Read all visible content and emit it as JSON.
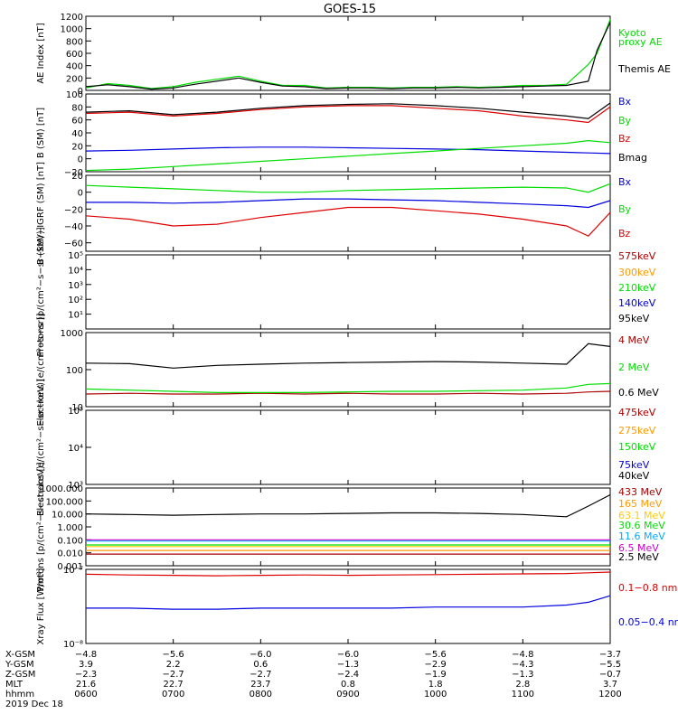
{
  "figure": {
    "title": "GOES-15"
  },
  "colors": {
    "black": "#000000",
    "red": "#dd0000",
    "green": "#00dd00",
    "blue": "#0000dd",
    "orange": "#ff9900",
    "gold": "#ffcc00",
    "cyan": "#00aaff",
    "magenta": "#cc00cc",
    "darkred": "#aa0000"
  },
  "chart_data": [
    {
      "type": "line",
      "ylabel": "AE Index [nT]",
      "ylim": [
        0,
        1200
      ],
      "yticks": [
        "0",
        "200",
        "400",
        "600",
        "800",
        "1000",
        "1200"
      ],
      "legend": [
        {
          "label": "Kyoto",
          "color": "green"
        },
        {
          "label": "proxy AE",
          "color": "green"
        },
        {
          "label": "Themis AE",
          "color": "black"
        }
      ],
      "x": [
        0,
        0.25,
        0.5,
        0.75,
        1,
        1.25,
        1.5,
        1.75,
        2,
        2.25,
        2.5,
        2.75,
        3,
        3.25,
        3.5,
        3.75,
        4,
        4.25,
        4.5,
        4.75,
        5,
        5.25,
        5.5,
        5.75,
        5.85,
        6
      ],
      "series": [
        {
          "name": "Kyoto proxy AE",
          "color": "green",
          "values": [
            40,
            110,
            80,
            30,
            60,
            130,
            180,
            230,
            150,
            80,
            80,
            40,
            50,
            50,
            40,
            50,
            50,
            60,
            50,
            60,
            80,
            80,
            100,
            420,
            600,
            1150
          ]
        },
        {
          "name": "Themis AE",
          "color": "black",
          "values": [
            60,
            90,
            60,
            20,
            40,
            100,
            150,
            200,
            130,
            70,
            60,
            30,
            40,
            40,
            30,
            40,
            40,
            50,
            40,
            50,
            60,
            70,
            80,
            150,
            650,
            1100
          ]
        }
      ]
    },
    {
      "type": "line",
      "ylabel": "B (SM) [nT]",
      "ylim": [
        -20,
        100
      ],
      "yticks": [
        "−20",
        "0",
        "20",
        "40",
        "60",
        "80",
        "100"
      ],
      "legend": [
        {
          "label": "Bx",
          "color": "blue"
        },
        {
          "label": "By",
          "color": "green"
        },
        {
          "label": "Bz",
          "color": "red"
        },
        {
          "label": "Bmag",
          "color": "black"
        }
      ],
      "x": [
        0,
        0.5,
        1,
        1.5,
        2,
        2.5,
        3,
        3.5,
        4,
        4.5,
        5,
        5.5,
        5.75,
        6
      ],
      "series": [
        {
          "name": "Bx",
          "color": "blue",
          "values": [
            12,
            13,
            15,
            17,
            18,
            18,
            17,
            16,
            15,
            14,
            12,
            10,
            9,
            8
          ]
        },
        {
          "name": "By",
          "color": "green",
          "values": [
            -18,
            -16,
            -12,
            -8,
            -4,
            0,
            4,
            8,
            12,
            16,
            20,
            24,
            28,
            25
          ]
        },
        {
          "name": "Bz",
          "color": "red",
          "values": [
            70,
            72,
            66,
            70,
            76,
            80,
            82,
            82,
            78,
            74,
            66,
            60,
            56,
            80
          ]
        },
        {
          "name": "Bmag",
          "color": "black",
          "values": [
            72,
            74,
            68,
            72,
            78,
            82,
            84,
            85,
            82,
            78,
            72,
            66,
            62,
            86
          ]
        }
      ]
    },
    {
      "type": "line",
      "ylabel": "B (SM)−IGRF (SM) [nT]",
      "ylim": [
        -70,
        20
      ],
      "yticks": [
        "−60",
        "−40",
        "−20",
        "0",
        "20"
      ],
      "legend": [
        {
          "label": "Bx",
          "color": "blue"
        },
        {
          "label": "By",
          "color": "green"
        },
        {
          "label": "Bz",
          "color": "red"
        }
      ],
      "x": [
        0,
        0.5,
        1,
        1.5,
        2,
        2.5,
        3,
        3.5,
        4,
        4.5,
        5,
        5.5,
        5.75,
        6
      ],
      "series": [
        {
          "name": "Bx",
          "color": "blue",
          "values": [
            -12,
            -12,
            -13,
            -12,
            -10,
            -8,
            -8,
            -9,
            -10,
            -12,
            -14,
            -16,
            -18,
            -10
          ]
        },
        {
          "name": "By",
          "color": "green",
          "values": [
            8,
            6,
            4,
            2,
            0,
            0,
            2,
            3,
            4,
            5,
            6,
            5,
            0,
            10
          ]
        },
        {
          "name": "Bz",
          "color": "red",
          "values": [
            -28,
            -32,
            -40,
            -38,
            -30,
            -24,
            -18,
            -18,
            -22,
            -26,
            -32,
            -40,
            -52,
            -24
          ]
        }
      ]
    },
    {
      "type": "line",
      "ylabel": "Protons [p/(cm²−s−sr−keV)]",
      "yscale": "log",
      "ylim": [
        1,
        100000
      ],
      "yticks": [
        "10¹",
        "10²",
        "10³",
        "10⁴",
        "10⁵"
      ],
      "legend": [
        {
          "label": "575keV",
          "color": "darkred"
        },
        {
          "label": "300keV",
          "color": "orange"
        },
        {
          "label": "210keV",
          "color": "green"
        },
        {
          "label": "140keV",
          "color": "blue"
        },
        {
          "label": "95keV",
          "color": "black"
        }
      ],
      "series": []
    },
    {
      "type": "line",
      "ylabel": "Electrons [e/(cm²−s−sr)]",
      "yscale": "log",
      "ylim": [
        10,
        1000
      ],
      "yticks": [
        "10",
        "100",
        "1000"
      ],
      "legend": [
        {
          "label": "4 MeV",
          "color": "darkred"
        },
        {
          "label": "2 MeV",
          "color": "green"
        },
        {
          "label": "0.6 MeV",
          "color": "black"
        }
      ],
      "x": [
        0,
        0.5,
        1,
        1.5,
        2,
        2.5,
        3,
        3.5,
        4,
        4.5,
        5,
        5.5,
        5.75,
        6
      ],
      "series": [
        {
          "name": "4 MeV",
          "color": "darkred",
          "values": [
            22,
            23,
            22,
            22,
            23,
            22,
            23,
            22,
            22,
            23,
            22,
            23,
            25,
            26
          ]
        },
        {
          "name": "2 MeV",
          "color": "green",
          "values": [
            30,
            28,
            26,
            24,
            24,
            24,
            25,
            26,
            26,
            27,
            28,
            32,
            40,
            42
          ]
        },
        {
          "name": "0.6 MeV",
          "color": "black",
          "values": [
            150,
            145,
            110,
            130,
            140,
            150,
            155,
            160,
            165,
            160,
            150,
            140,
            500,
            420
          ]
        }
      ]
    },
    {
      "type": "line",
      "ylabel": "Electrons [e/(cm²−s−sr−keV)]",
      "yscale": "log",
      "ylim": [
        1000,
        100000
      ],
      "yticks": [
        "10³",
        "10⁴",
        "10⁵"
      ],
      "legend": [
        {
          "label": "475keV",
          "color": "darkred"
        },
        {
          "label": "275keV",
          "color": "orange"
        },
        {
          "label": "150keV",
          "color": "green"
        },
        {
          "label": "75keV",
          "color": "blue"
        },
        {
          "label": "40keV",
          "color": "black"
        }
      ],
      "series": []
    },
    {
      "type": "line",
      "ylabel": "Protons [p/(cm²−s−sr−keV)]",
      "yscale": "log",
      "ylim": [
        0.001,
        1000
      ],
      "yticks": [
        "0.001",
        "0.010",
        "0.100",
        "1.000",
        "10.000",
        "100.000",
        "1000.000"
      ],
      "legend": [
        {
          "label": "433 MeV",
          "color": "darkred"
        },
        {
          "label": "165 MeV",
          "color": "orange"
        },
        {
          "label": "63.1 MeV",
          "color": "gold"
        },
        {
          "label": "30.6 MeV",
          "color": "green"
        },
        {
          "label": "11.6 MeV",
          "color": "cyan"
        },
        {
          "label": "6.5 MeV",
          "color": "magenta"
        },
        {
          "label": "2.5 MeV",
          "color": "black"
        }
      ],
      "x": [
        0,
        0.5,
        1,
        1.5,
        2,
        2.5,
        3,
        3.5,
        4,
        4.5,
        5,
        5.5,
        5.75,
        6
      ],
      "series": [
        {
          "name": "2.5 MeV",
          "color": "black",
          "values": [
            10,
            9,
            8,
            9,
            10,
            10,
            11,
            12,
            12,
            11,
            9,
            6,
            40,
            300
          ]
        },
        {
          "name": "6.5 MeV",
          "color": "magenta",
          "values": [
            0.1,
            0.1,
            0.1,
            0.1,
            0.1,
            0.1,
            0.1,
            0.1,
            0.1,
            0.1,
            0.1,
            0.1,
            0.1,
            0.1
          ]
        },
        {
          "name": "11.6 MeV",
          "color": "cyan",
          "values": [
            0.08,
            0.08,
            0.08,
            0.08,
            0.08,
            0.08,
            0.08,
            0.08,
            0.08,
            0.08,
            0.08,
            0.08,
            0.08,
            0.08
          ]
        },
        {
          "name": "30.6 MeV",
          "color": "green",
          "values": [
            0.04,
            0.04,
            0.04,
            0.04,
            0.04,
            0.04,
            0.04,
            0.04,
            0.04,
            0.04,
            0.04,
            0.04,
            0.04,
            0.04
          ]
        },
        {
          "name": "63.1 MeV",
          "color": "gold",
          "values": [
            0.03,
            0.03,
            0.03,
            0.03,
            0.03,
            0.03,
            0.03,
            0.03,
            0.03,
            0.03,
            0.03,
            0.03,
            0.03,
            0.03
          ]
        },
        {
          "name": "165 MeV",
          "color": "orange",
          "values": [
            0.015,
            0.015,
            0.015,
            0.015,
            0.015,
            0.015,
            0.015,
            0.015,
            0.015,
            0.015,
            0.015,
            0.015,
            0.015,
            0.015
          ]
        },
        {
          "name": "433 MeV",
          "color": "darkred",
          "values": [
            0.008,
            0.008,
            0.008,
            0.008,
            0.008,
            0.008,
            0.008,
            0.008,
            0.008,
            0.008,
            0.008,
            0.008,
            0.008,
            0.008
          ]
        }
      ]
    },
    {
      "type": "line",
      "ylabel": "Xray Flux [W/m²]",
      "yscale": "log",
      "ylim": [
        1e-08,
        1e-07
      ],
      "yticks": [
        "10⁻⁸",
        "10⁻⁷"
      ],
      "legend": [
        {
          "label": "0.1−0.8 nm",
          "color": "red"
        },
        {
          "label": "0.05−0.4 nm",
          "color": "blue"
        }
      ],
      "x": [
        0,
        0.5,
        1,
        1.5,
        2,
        2.5,
        3,
        3.5,
        4,
        4.5,
        5,
        5.5,
        5.75,
        6
      ],
      "series": [
        {
          "name": "0.1−0.8 nm",
          "color": "red",
          "values": [
            8.6e-08,
            8.4e-08,
            8.3e-08,
            8.2e-08,
            8.3e-08,
            8.4e-08,
            8.3e-08,
            8.4e-08,
            8.5e-08,
            8.6e-08,
            8.7e-08,
            8.8e-08,
            9e-08,
            9.2e-08
          ]
        },
        {
          "name": "0.05−0.4 nm",
          "color": "blue",
          "values": [
            3e-08,
            3e-08,
            2.9e-08,
            2.9e-08,
            3e-08,
            3e-08,
            3e-08,
            3e-08,
            3.1e-08,
            3.1e-08,
            3.1e-08,
            3.3e-08,
            3.6e-08,
            4.4e-08
          ]
        }
      ]
    }
  ],
  "xaxis": {
    "row_labels": [
      "X-GSM",
      "Y-GSM",
      "Z-GSM",
      "MLT",
      "hhmm"
    ],
    "columns": [
      {
        "X-GSM": "−4.8",
        "Y-GSM": "3.9",
        "Z-GSM": "−2.3",
        "MLT": "21.6",
        "hhmm": "0600"
      },
      {
        "X-GSM": "−5.6",
        "Y-GSM": "2.2",
        "Z-GSM": "−2.7",
        "MLT": "22.7",
        "hhmm": "0700"
      },
      {
        "X-GSM": "−6.0",
        "Y-GSM": "0.6",
        "Z-GSM": "−2.7",
        "MLT": "23.7",
        "hhmm": "0800"
      },
      {
        "X-GSM": "−6.0",
        "Y-GSM": "−1.3",
        "Z-GSM": "−2.4",
        "MLT": "0.8",
        "hhmm": "0900"
      },
      {
        "X-GSM": "−5.6",
        "Y-GSM": "−2.9",
        "Z-GSM": "−1.9",
        "MLT": "1.8",
        "hhmm": "1000"
      },
      {
        "X-GSM": "−4.8",
        "Y-GSM": "−4.3",
        "Z-GSM": "−1.3",
        "MLT": "2.8",
        "hhmm": "1100"
      },
      {
        "X-GSM": "−3.7",
        "Y-GSM": "−5.5",
        "Z-GSM": "−0.7",
        "MLT": "3.7",
        "hhmm": "1200"
      }
    ],
    "date": "2019 Dec 18"
  }
}
